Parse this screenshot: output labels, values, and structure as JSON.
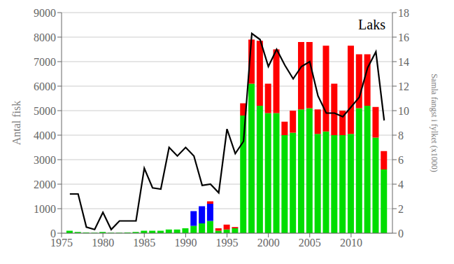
{
  "chart_data": {
    "type": "bar",
    "title": "Laks",
    "ylabel": "Antal fisk",
    "y2label": "Samla fangst i fylket (x1000)",
    "x": [
      1976,
      1977,
      1978,
      1979,
      1980,
      1981,
      1982,
      1983,
      1984,
      1985,
      1986,
      1987,
      1988,
      1989,
      1990,
      1991,
      1992,
      1993,
      1994,
      1995,
      1996,
      1997,
      1998,
      1999,
      2000,
      2001,
      2002,
      2003,
      2004,
      2005,
      2006,
      2007,
      2008,
      2009,
      2010,
      2011,
      2012,
      2013,
      2014
    ],
    "xlim": [
      1975.0,
      2015.0
    ],
    "xticks": [
      1975,
      1980,
      1985,
      1990,
      1995,
      2000,
      2005,
      2010
    ],
    "ylim": [
      0,
      9000
    ],
    "yticks": [
      0,
      1000,
      2000,
      3000,
      4000,
      5000,
      6000,
      7000,
      8000,
      9000
    ],
    "y2lim": [
      0,
      18
    ],
    "y2ticks": [
      0,
      2,
      4,
      6,
      8,
      10,
      12,
      14,
      16,
      18
    ],
    "grid": "y",
    "stacked": true,
    "series": [
      {
        "type": "bar",
        "color": "#00dd00",
        "values": [
          100,
          50,
          30,
          20,
          50,
          20,
          20,
          30,
          50,
          100,
          100,
          100,
          150,
          150,
          200,
          300,
          400,
          500,
          100,
          150,
          200,
          4800,
          6100,
          5200,
          4900,
          4900,
          4000,
          4100,
          5050,
          5100,
          4050,
          4150,
          4000,
          4000,
          4050,
          5100,
          5200,
          3900,
          2600
        ]
      },
      {
        "type": "bar",
        "color": "#0000ff",
        "values": [
          0,
          0,
          0,
          0,
          0,
          0,
          0,
          0,
          0,
          0,
          0,
          0,
          0,
          0,
          0,
          600,
          700,
          700,
          0,
          0,
          0,
          0,
          0,
          0,
          0,
          0,
          0,
          0,
          0,
          0,
          0,
          0,
          0,
          0,
          0,
          0,
          0,
          0,
          0
        ]
      },
      {
        "type": "bar",
        "color": "#ff0000",
        "values": [
          0,
          0,
          0,
          0,
          0,
          0,
          0,
          0,
          0,
          0,
          0,
          0,
          0,
          0,
          0,
          0,
          0,
          100,
          100,
          200,
          50,
          500,
          1800,
          2650,
          1200,
          2600,
          550,
          900,
          2750,
          2700,
          1000,
          3500,
          2100,
          1000,
          3600,
          2200,
          2100,
          1250,
          750
        ]
      },
      {
        "type": "line",
        "color": "#000000",
        "axis": "y2",
        "values": [
          3.2,
          3.2,
          0.5,
          0.3,
          1.7,
          0.3,
          1.0,
          1.0,
          1.0,
          5.3,
          3.7,
          3.6,
          7.0,
          6.3,
          7.0,
          6.3,
          3.9,
          4.0,
          3.3,
          8.5,
          6.5,
          7.5,
          16.3,
          15.8,
          13.6,
          15.0,
          13.7,
          12.6,
          13.6,
          14.0,
          11.2,
          9.8,
          9.8,
          9.5,
          10.3,
          11.1,
          13.5,
          14.8,
          9.2
        ]
      }
    ]
  }
}
